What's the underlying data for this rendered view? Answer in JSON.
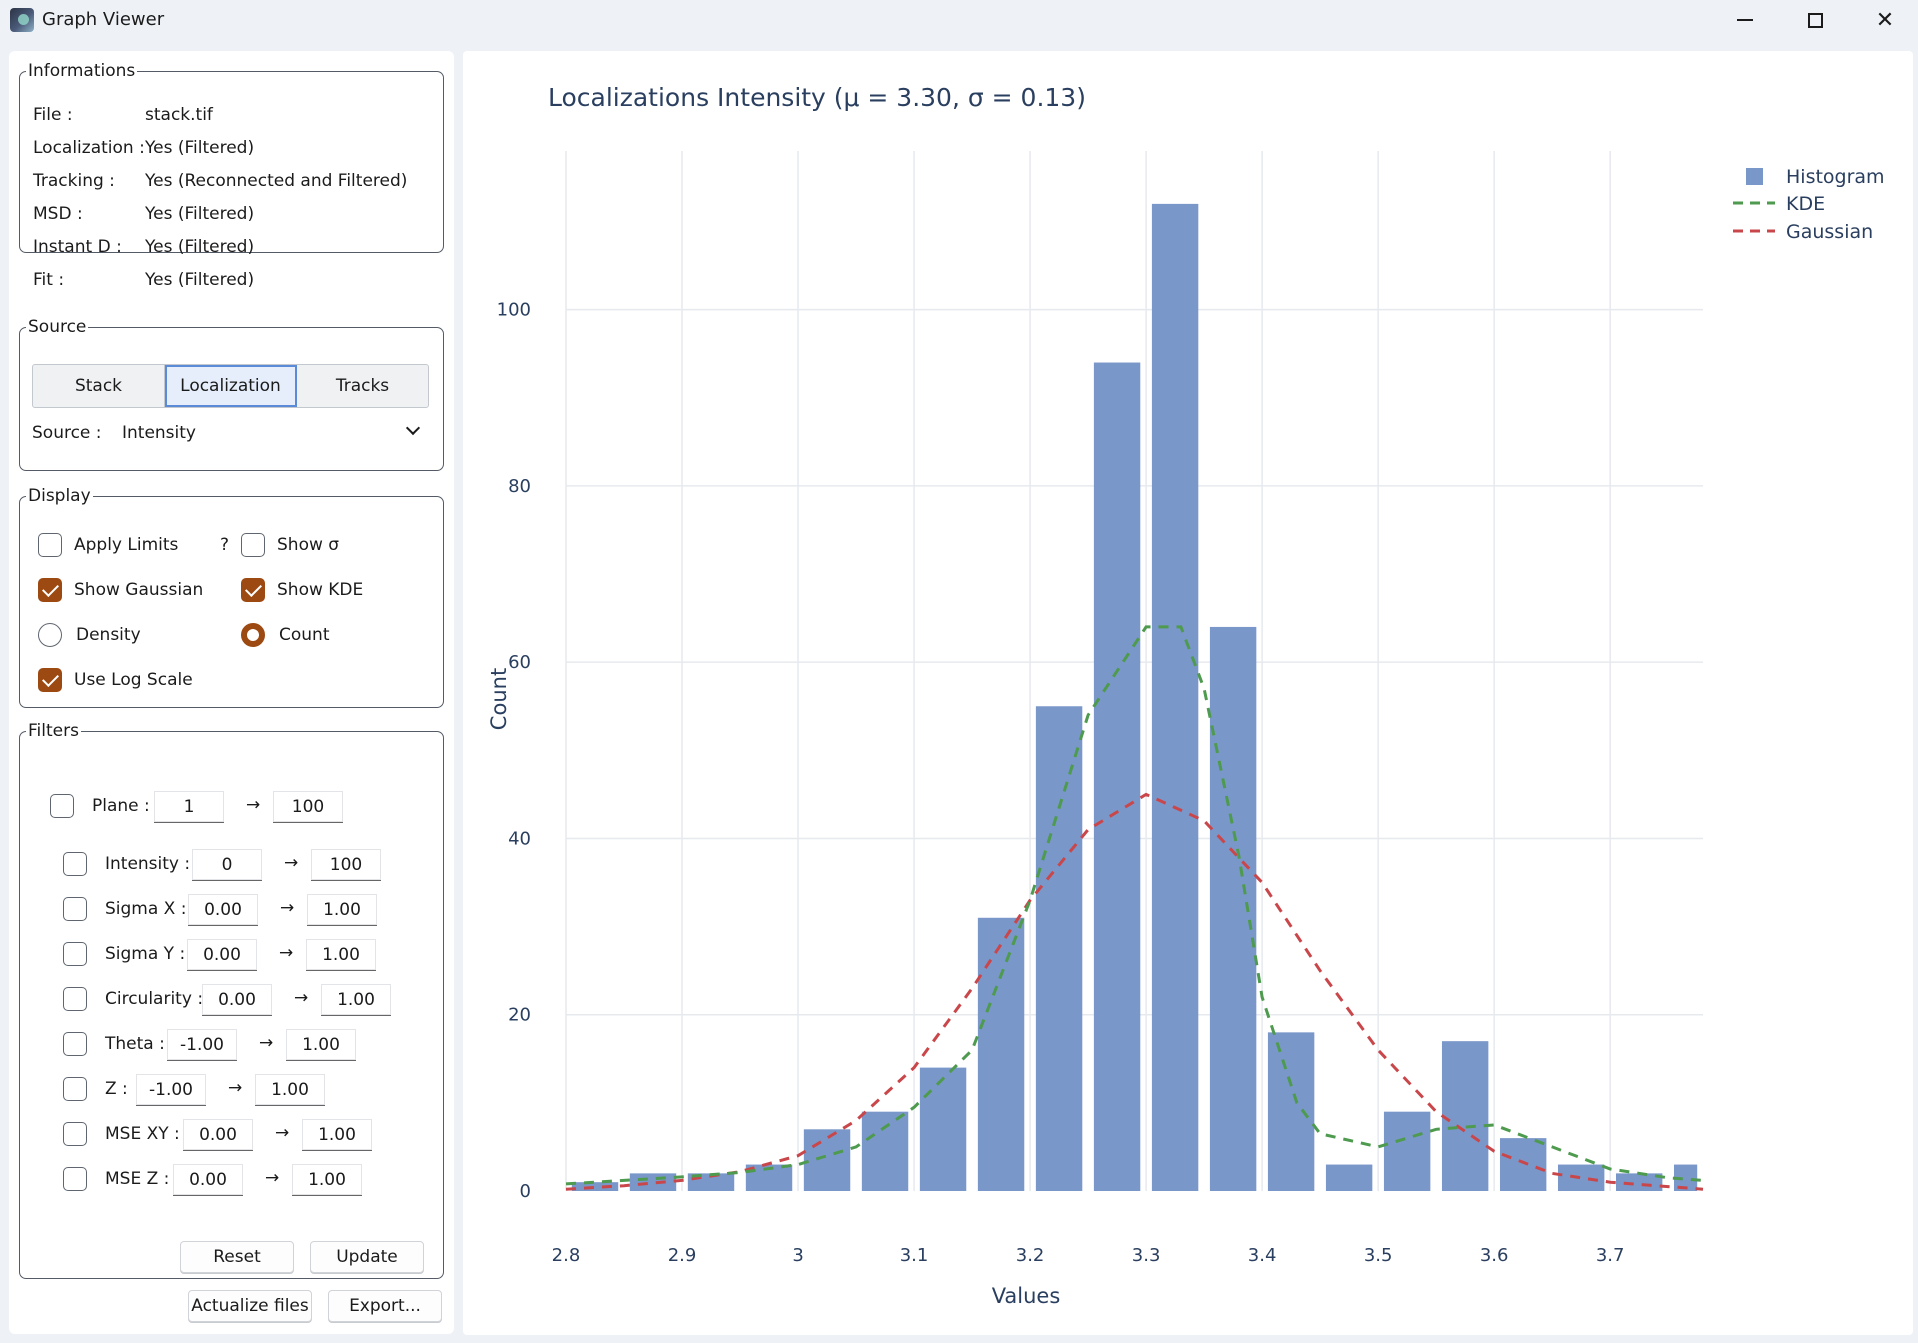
{
  "window": {
    "title": "Graph Viewer",
    "min_icon": "minimize-icon",
    "max_icon": "maximize-icon",
    "close_icon": "close-icon"
  },
  "informations": {
    "legend": "Informations",
    "rows": [
      {
        "key": "File :",
        "value": "stack.tif"
      },
      {
        "key": "Localization :",
        "value": "Yes (Filtered)"
      },
      {
        "key": "Tracking :",
        "value": "Yes (Reconnected and Filtered)"
      },
      {
        "key": "MSD :",
        "value": "Yes (Filtered)"
      },
      {
        "key": "Instant D :",
        "value": "Yes (Filtered)"
      },
      {
        "key": "Fit :",
        "value": "Yes (Filtered)"
      }
    ]
  },
  "source": {
    "legend": "Source",
    "tabs": [
      "Stack",
      "Localization",
      "Tracks"
    ],
    "active_tab": "Localization",
    "label": "Source :",
    "selected": "Intensity"
  },
  "display": {
    "legend": "Display",
    "apply_limits": "Apply Limits",
    "help": "?",
    "show_sigma": "Show σ",
    "show_gaussian": "Show Gaussian",
    "show_kde": "Show KDE",
    "density": "Density",
    "count": "Count",
    "use_log_scale": "Use Log Scale"
  },
  "filters": {
    "legend": "Filters",
    "arrow": "→",
    "rows": [
      {
        "label": "Plane :",
        "min": "1",
        "max": "100"
      },
      {
        "label": "Intensity :",
        "min": "0",
        "max": "100"
      },
      {
        "label": "Sigma X :",
        "min": "0.00",
        "max": "1.00"
      },
      {
        "label": "Sigma Y :",
        "min": "0.00",
        "max": "1.00"
      },
      {
        "label": "Circularity :",
        "min": "0.00",
        "max": "1.00"
      },
      {
        "label": "Theta :",
        "min": "-1.00",
        "max": "1.00"
      },
      {
        "label": "Z :",
        "min": "-1.00",
        "max": "1.00"
      },
      {
        "label": "MSE XY :",
        "min": "0.00",
        "max": "1.00"
      },
      {
        "label": "MSE Z :",
        "min": "0.00",
        "max": "1.00"
      }
    ],
    "reset": "Reset",
    "update": "Update"
  },
  "footer": {
    "actualize": "Actualize files",
    "export": "Export..."
  },
  "colors": {
    "bar": "#7a97c9",
    "kde": "#4e9a4e",
    "gaussian": "#c9474a",
    "accent": "#9c4a12"
  },
  "chart_data": {
    "type": "bar",
    "title": "Localizations Intensity (μ = 3.30, σ = 0.13)",
    "xlabel": "Values",
    "ylabel": "Count",
    "xlim": [
      2.8,
      3.78
    ],
    "ylim": [
      0,
      118
    ],
    "xticks": [
      2.8,
      2.9,
      3,
      3.1,
      3.2,
      3.3,
      3.4,
      3.5,
      3.6,
      3.7
    ],
    "xtick_labels": [
      "2.8",
      "2.9",
      "3",
      "3.1",
      "3.2",
      "3.3",
      "3.4",
      "3.5",
      "3.6",
      "3.7"
    ],
    "yticks": [
      0,
      20,
      40,
      60,
      80,
      100
    ],
    "ytick_labels": [
      "0",
      "20",
      "40",
      "60",
      "80",
      "100"
    ],
    "bin_width": 0.05,
    "bins": [
      2.8,
      2.85,
      2.9,
      2.95,
      3.0,
      3.05,
      3.1,
      3.15,
      3.2,
      3.25,
      3.3,
      3.35,
      3.4,
      3.45,
      3.5,
      3.55,
      3.6,
      3.65,
      3.7,
      3.75
    ],
    "counts": [
      1,
      2,
      2,
      3,
      7,
      9,
      14,
      31,
      55,
      94,
      112,
      64,
      18,
      3,
      9,
      17,
      6,
      3,
      2,
      3
    ],
    "legend": [
      "Histogram",
      "KDE",
      "Gaussian"
    ],
    "legend_position": "top-right",
    "kde": {
      "x": [
        2.8,
        2.85,
        2.9,
        2.95,
        3.0,
        3.05,
        3.1,
        3.15,
        3.2,
        3.25,
        3.3,
        3.33,
        3.35,
        3.38,
        3.4,
        3.43,
        3.45,
        3.5,
        3.55,
        3.6,
        3.65,
        3.7,
        3.75,
        3.78
      ],
      "y": [
        0.8,
        1.2,
        1.6,
        2.1,
        3.0,
        5.0,
        9.5,
        16,
        33,
        54,
        64,
        64,
        57,
        38,
        22,
        10,
        6.5,
        5,
        7,
        7.5,
        5,
        2.5,
        1.5,
        1.2
      ]
    },
    "gaussian": {
      "x": [
        2.8,
        2.85,
        2.9,
        2.95,
        3.0,
        3.05,
        3.1,
        3.15,
        3.2,
        3.25,
        3.3,
        3.35,
        3.4,
        3.45,
        3.5,
        3.55,
        3.6,
        3.65,
        3.7,
        3.75,
        3.78
      ],
      "y": [
        0.2,
        0.6,
        1.2,
        2.2,
        4.0,
        8.0,
        14,
        23,
        33,
        41,
        45,
        42,
        35,
        25,
        16,
        9,
        4.5,
        2,
        1,
        0.5,
        0.2
      ]
    }
  }
}
